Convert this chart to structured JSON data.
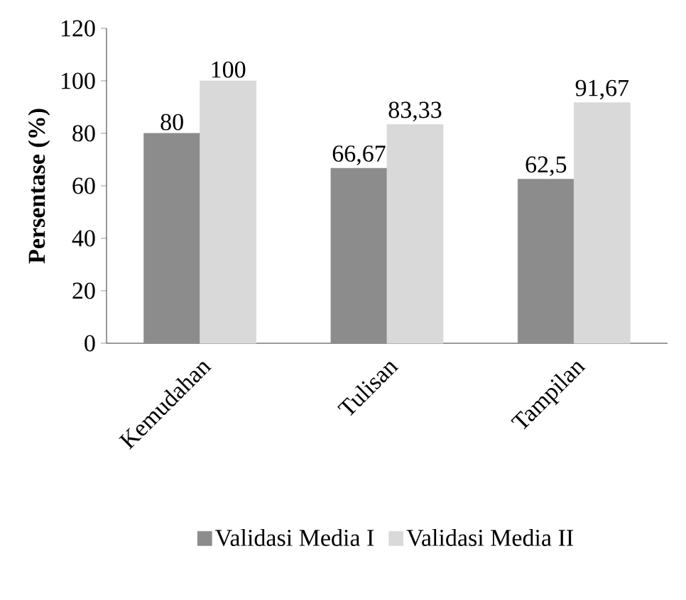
{
  "chart_data": {
    "type": "bar",
    "ylabel": "Persentase (%)",
    "categories": [
      "Kemudahan",
      "Tulisan",
      "Tampilan"
    ],
    "series": [
      {
        "name": "Validasi Media I",
        "color": "#8c8c8c",
        "values": [
          80,
          66.67,
          62.5
        ],
        "value_labels": [
          "80",
          "66,67",
          "62,5"
        ]
      },
      {
        "name": "Validasi Media II",
        "color": "#d9d9d9",
        "values": [
          100,
          83.33,
          91.67
        ],
        "value_labels": [
          "100",
          "83,33",
          "91,67"
        ]
      }
    ],
    "ylim": [
      0,
      120
    ],
    "yticks": [
      0,
      20,
      40,
      60,
      80,
      100,
      120
    ],
    "legend": "bottom"
  }
}
